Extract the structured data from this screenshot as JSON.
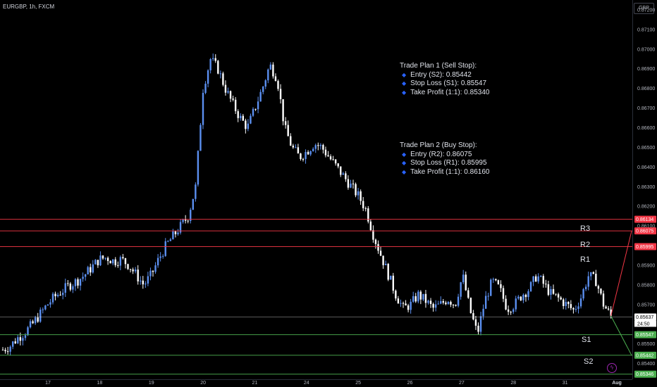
{
  "header": {
    "symbol": "EURGBP, 1h, FXCM",
    "currency_button": "GBP"
  },
  "trade_plans": [
    {
      "title": "Trade Plan 1 (Sell Stop):",
      "items": [
        "Entry (S2): 0.85442",
        "Stop Loss (S1): 0.85547",
        "Take Profit (1:1): 0.85340"
      ]
    },
    {
      "title": "Trade Plan 2 (Buy Stop):",
      "items": [
        "Entry (R2): 0.86075",
        "Stop Loss (R1): 0.85995",
        "Take Profit (1:1): 0.86160"
      ]
    }
  ],
  "levels": {
    "r3": "R3",
    "r2": "R2",
    "r1": "R1",
    "s1": "S1",
    "s2": "S2"
  },
  "colors": {
    "up": "#5b8ff0",
    "down": "#ffffff",
    "resistance": "#f23645",
    "support": "#4caf50",
    "accent": "#2962ff"
  },
  "chart_data": {
    "type": "candlestick",
    "title": "EURGBP, 1h, FXCM",
    "x_tick_labels": [
      "17",
      "18",
      "19",
      "20",
      "21",
      "24",
      "25",
      "26",
      "27",
      "28",
      "31",
      "Aug"
    ],
    "y_tick_labels": [
      "0.87200",
      "0.87100",
      "0.87000",
      "0.86900",
      "0.86800",
      "0.86700",
      "0.86600",
      "0.86500",
      "0.86400",
      "0.86300",
      "0.86200",
      "0.86100",
      "0.85900",
      "0.85800",
      "0.85700",
      "0.85500",
      "0.85400"
    ],
    "ylim": [
      0.8532,
      0.8725
    ],
    "horizontal_levels": [
      {
        "price": 0.86134,
        "label": "0.86134",
        "color": "#f23645"
      },
      {
        "price": 0.86075,
        "label": "0.86075",
        "color": "#f23645"
      },
      {
        "price": 0.85995,
        "label": "0.85995",
        "color": "#f23645"
      },
      {
        "price": 0.85637,
        "label": "0.85637",
        "color": "#ffffff"
      },
      {
        "price": 0.85547,
        "label": "0.85547",
        "color": "#4caf50"
      },
      {
        "price": 0.85442,
        "label": "0.85442",
        "color": "#4caf50"
      },
      {
        "price": 0.85346,
        "label": "0.85346",
        "color": "#4caf50"
      }
    ],
    "countdown": "24:50",
    "close_series": [
      0.8547,
      0.8549,
      0.8553,
      0.8556,
      0.856,
      0.8565,
      0.857,
      0.8574,
      0.8577,
      0.858,
      0.8582,
      0.8585,
      0.8589,
      0.8593,
      0.8594,
      0.8592,
      0.8593,
      0.859,
      0.8585,
      0.858,
      0.8585,
      0.8593,
      0.86,
      0.8605,
      0.861,
      0.8615,
      0.863,
      0.868,
      0.8695,
      0.869,
      0.868,
      0.8672,
      0.8665,
      0.866,
      0.867,
      0.868,
      0.8692,
      0.8685,
      0.866,
      0.865,
      0.8645,
      0.8648,
      0.8652,
      0.865,
      0.8645,
      0.864,
      0.8635,
      0.863,
      0.8625,
      0.8618,
      0.8605,
      0.8595,
      0.8585,
      0.8575,
      0.8568,
      0.857,
      0.8575,
      0.8572,
      0.8568,
      0.857,
      0.8573,
      0.857,
      0.8585,
      0.8567,
      0.8555,
      0.8572,
      0.8582,
      0.8578,
      0.8568,
      0.857,
      0.8575,
      0.8578,
      0.8585,
      0.858,
      0.8575,
      0.8573,
      0.857,
      0.8567,
      0.8574,
      0.8585,
      0.8582,
      0.857,
      0.8564
    ],
    "trend_lines": [
      {
        "from": "last_close",
        "to_price": 0.86075,
        "color": "#f23645"
      },
      {
        "from": "last_close",
        "to_price": 0.85442,
        "color": "#4caf50"
      }
    ]
  }
}
